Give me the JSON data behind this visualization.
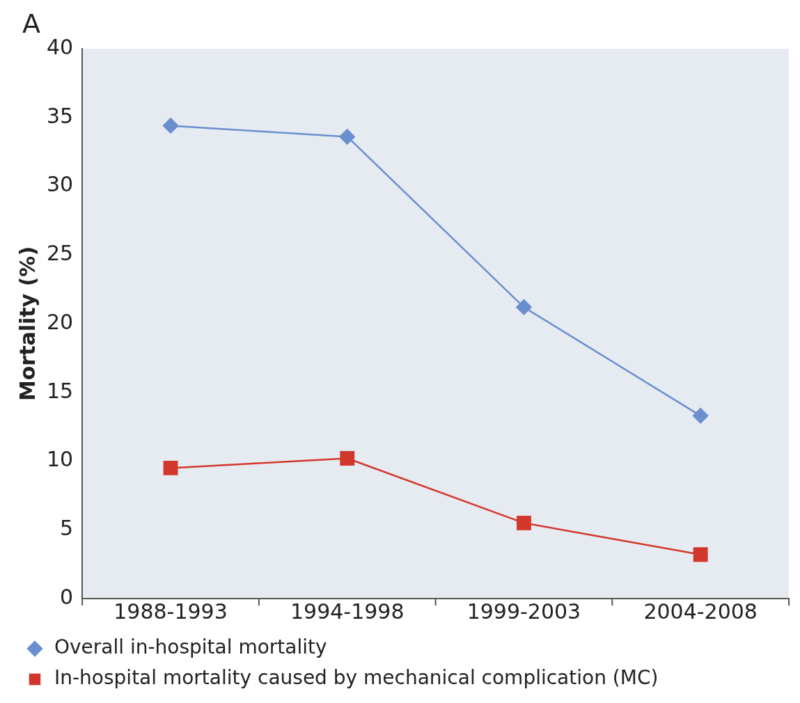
{
  "chart_data": {
    "type": "line",
    "ylabel": "Mortality (%)",
    "annotations": [
      "A"
    ],
    "categories": [
      "1988-1993",
      "1994-1998",
      "1999-2003",
      "2004-2008"
    ],
    "series": [
      {
        "name": "Overall in-hospital mortality",
        "color": "#6a8fcf",
        "marker": "diamond",
        "values": [
          34.4,
          33.6,
          21.2,
          13.3
        ]
      },
      {
        "name": "In-hospital mortality caused by mechanical complication (MC)",
        "color": "#d2372b",
        "marker": "square",
        "values": [
          9.5,
          10.2,
          5.5,
          3.2
        ]
      }
    ],
    "ylim": [
      0,
      40
    ],
    "yticks": [
      0,
      5,
      10,
      15,
      20,
      25,
      30,
      35,
      40
    ],
    "grid": false,
    "legend": "bottom",
    "line_style": "solid"
  }
}
